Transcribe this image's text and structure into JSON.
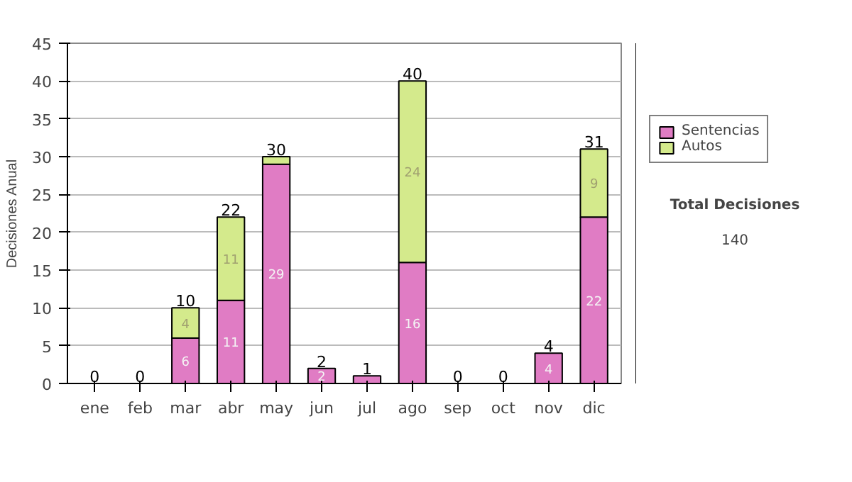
{
  "chart_data": {
    "type": "bar",
    "stacked": true,
    "ylabel": "Decisiones Anual",
    "categories": [
      "ene",
      "feb",
      "mar",
      "abr",
      "may",
      "jun",
      "jul",
      "ago",
      "sep",
      "oct",
      "nov",
      "dic"
    ],
    "series": [
      {
        "name": "Sentencias",
        "color": "#e07cc4",
        "values": [
          0,
          0,
          6,
          11,
          29,
          2,
          1,
          16,
          0,
          0,
          4,
          22
        ],
        "value_labels": [
          null,
          null,
          "6",
          "11",
          "29",
          "2",
          null,
          "16",
          null,
          null,
          "4",
          "22"
        ]
      },
      {
        "name": "Autos",
        "color": "#d4ea8c",
        "values": [
          0,
          0,
          4,
          11,
          1,
          0,
          0,
          24,
          0,
          0,
          0,
          9
        ],
        "value_labels": [
          null,
          null,
          "4",
          "11",
          null,
          null,
          null,
          "24",
          null,
          null,
          null,
          "9"
        ]
      }
    ],
    "totals": [
      "0",
      "0",
      "10",
      "22",
      "30",
      "2",
      "1",
      "40",
      "0",
      "0",
      "4",
      "31"
    ],
    "ylim": [
      0,
      45
    ],
    "yticks": [
      0,
      5,
      10,
      15,
      20,
      25,
      30,
      35,
      40,
      45
    ],
    "grid": "y",
    "legend": "right",
    "annotations": [
      "Total Decisiones",
      "140"
    ]
  }
}
